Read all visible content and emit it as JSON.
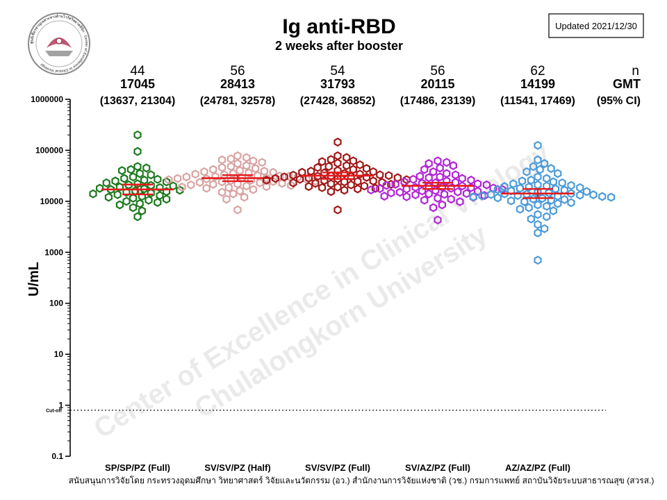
{
  "header": {
    "title": "Ig anti-RBD",
    "subtitle": "2 weeks after booster",
    "updated": "Updated 2021/12/30"
  },
  "logo": {
    "ring_text": "ศูนย์เชี่ยวชาญเฉพาะทางด้านไวรัสวิทยาคลินิก · Center of Excellence in Clinical Virology",
    "colors": {
      "ring": "#7a7a7a",
      "accent": "#b23a5a"
    }
  },
  "watermark": {
    "line1": "Center of Excellence in Clinical Virology",
    "line2": "Chulalongkorn University"
  },
  "footer": "สนับสนุนการวิจัยโดย กระทรวงอุดมศึกษา วิทยาศาสตร์ วิจัยและนวัตกรรม (อว.) สำนักงานการวิจัยแห่งชาติ (วช.) กรมการแพทย์ สถาบันวิจัยระบบสาธารณสุข (สวรส.)",
  "chart_data": {
    "type": "scatter",
    "title": "Ig anti-RBD",
    "subtitle": "2 weeks after booster",
    "ylabel": "U/mL",
    "yscale": "log",
    "ylim": [
      0.1,
      1000000
    ],
    "yticks": [
      {
        "value": 1000000,
        "label": "1000000"
      },
      {
        "value": 100000,
        "label": "100000"
      },
      {
        "value": 10000,
        "label": "10000"
      },
      {
        "value": 1000,
        "label": "1000"
      },
      {
        "value": 100,
        "label": "100"
      },
      {
        "value": 10,
        "label": "10"
      },
      {
        "value": 1,
        "label": "1"
      },
      {
        "value": 0.1,
        "label": "0.1"
      }
    ],
    "cutoff": {
      "value": 0.8,
      "label": "Cut-off"
    },
    "stats_labels": {
      "n": "n",
      "gmt": "GMT",
      "ci": "(95% CI)"
    },
    "series": [
      {
        "name": "SP/SP/PZ (Full)",
        "color": "#1f7a1f",
        "n": "44",
        "gmt": 17045,
        "gmt_text": "17045",
        "ci": [
          13637,
          21304
        ],
        "ci_text": "(13637, 21304)",
        "values": [
          200000,
          95000,
          48000,
          45000,
          42000,
          40000,
          35000,
          33000,
          30000,
          28000,
          27000,
          26000,
          25000,
          24000,
          23000,
          22000,
          21000,
          20500,
          20000,
          19000,
          18500,
          18000,
          17500,
          17000,
          16500,
          16000,
          15500,
          15000,
          14500,
          14000,
          13500,
          13000,
          12500,
          12000,
          11500,
          11000,
          10500,
          10000,
          9500,
          9000,
          8500,
          7500,
          6500,
          5000
        ]
      },
      {
        "name": "SV/SV/PZ (Half)",
        "color": "#d9a3a3",
        "n": "56",
        "gmt": 28413,
        "gmt_text": "28413",
        "ci": [
          24781,
          32578
        ],
        "ci_text": "(24781, 32578)",
        "values": [
          78000,
          72000,
          68000,
          65000,
          62000,
          58000,
          55000,
          50000,
          48000,
          46000,
          44000,
          42000,
          40000,
          39000,
          38000,
          37000,
          36000,
          35000,
          34000,
          33000,
          32000,
          31500,
          31000,
          30500,
          30000,
          29500,
          29000,
          28500,
          28000,
          27500,
          27000,
          26500,
          26000,
          25500,
          25000,
          24500,
          24000,
          23500,
          23000,
          22500,
          22000,
          21500,
          21000,
          20500,
          20000,
          19500,
          19000,
          18500,
          18000,
          17000,
          16000,
          15000,
          14000,
          12000,
          11000,
          6800
        ]
      },
      {
        "name": "SV/SV/PZ (Full)",
        "color": "#a01818",
        "n": "54",
        "gmt": 31793,
        "gmt_text": "31793",
        "ci": [
          27428,
          36852
        ],
        "ci_text": "(27428, 36852)",
        "values": [
          145000,
          78000,
          72000,
          66000,
          62000,
          60000,
          56000,
          52000,
          50000,
          48000,
          46000,
          44000,
          42000,
          40000,
          39000,
          38000,
          37000,
          36000,
          35000,
          34000,
          33000,
          32500,
          32000,
          31500,
          31000,
          30500,
          30000,
          29500,
          29000,
          28500,
          28000,
          27500,
          27000,
          26500,
          26000,
          25500,
          25000,
          24500,
          24000,
          23500,
          23000,
          22500,
          22000,
          21500,
          21000,
          20000,
          19500,
          19000,
          18500,
          18000,
          17500,
          16500,
          15500,
          6800
        ]
      },
      {
        "name": "SV/AZ/PZ (Full)",
        "color": "#b026d6",
        "n": "56",
        "gmt": 20115,
        "gmt_text": "20115",
        "ci": [
          17486,
          23139
        ],
        "ci_text": "(17486, 23139)",
        "values": [
          62000,
          58000,
          55000,
          50000,
          45000,
          42000,
          38000,
          35000,
          33000,
          31000,
          30000,
          29000,
          28000,
          27000,
          26000,
          25000,
          24000,
          23500,
          23000,
          22500,
          22000,
          21500,
          21000,
          20500,
          20000,
          19500,
          19000,
          18800,
          18500,
          18200,
          18000,
          17700,
          17400,
          17000,
          16700,
          16300,
          16000,
          15700,
          15300,
          15000,
          14600,
          14200,
          14000,
          13700,
          13400,
          13000,
          12600,
          12300,
          12000,
          11500,
          11000,
          10500,
          9800,
          8500,
          7500,
          4300
        ]
      },
      {
        "name": "AZ/AZ/PZ (Full)",
        "color": "#4d9bd9",
        "n": "62",
        "gmt": 14199,
        "gmt_text": "14199",
        "ci": [
          11541,
          17469
        ],
        "ci_text": "(11541, 17469)",
        "values": [
          125000,
          65000,
          55000,
          48000,
          44000,
          42000,
          38000,
          35000,
          30000,
          28000,
          26000,
          25000,
          24000,
          23000,
          22000,
          21000,
          20500,
          20000,
          19500,
          19000,
          18500,
          18000,
          17500,
          17000,
          16500,
          16000,
          15500,
          15000,
          14600,
          14200,
          14000,
          13800,
          13600,
          13400,
          13200,
          13000,
          12800,
          12600,
          12400,
          12200,
          12000,
          11700,
          11400,
          11100,
          10800,
          10500,
          10200,
          9800,
          9400,
          9000,
          8500,
          8000,
          7500,
          7000,
          6500,
          5500,
          5000,
          4500,
          3500,
          2900,
          2400,
          700
        ]
      }
    ]
  }
}
